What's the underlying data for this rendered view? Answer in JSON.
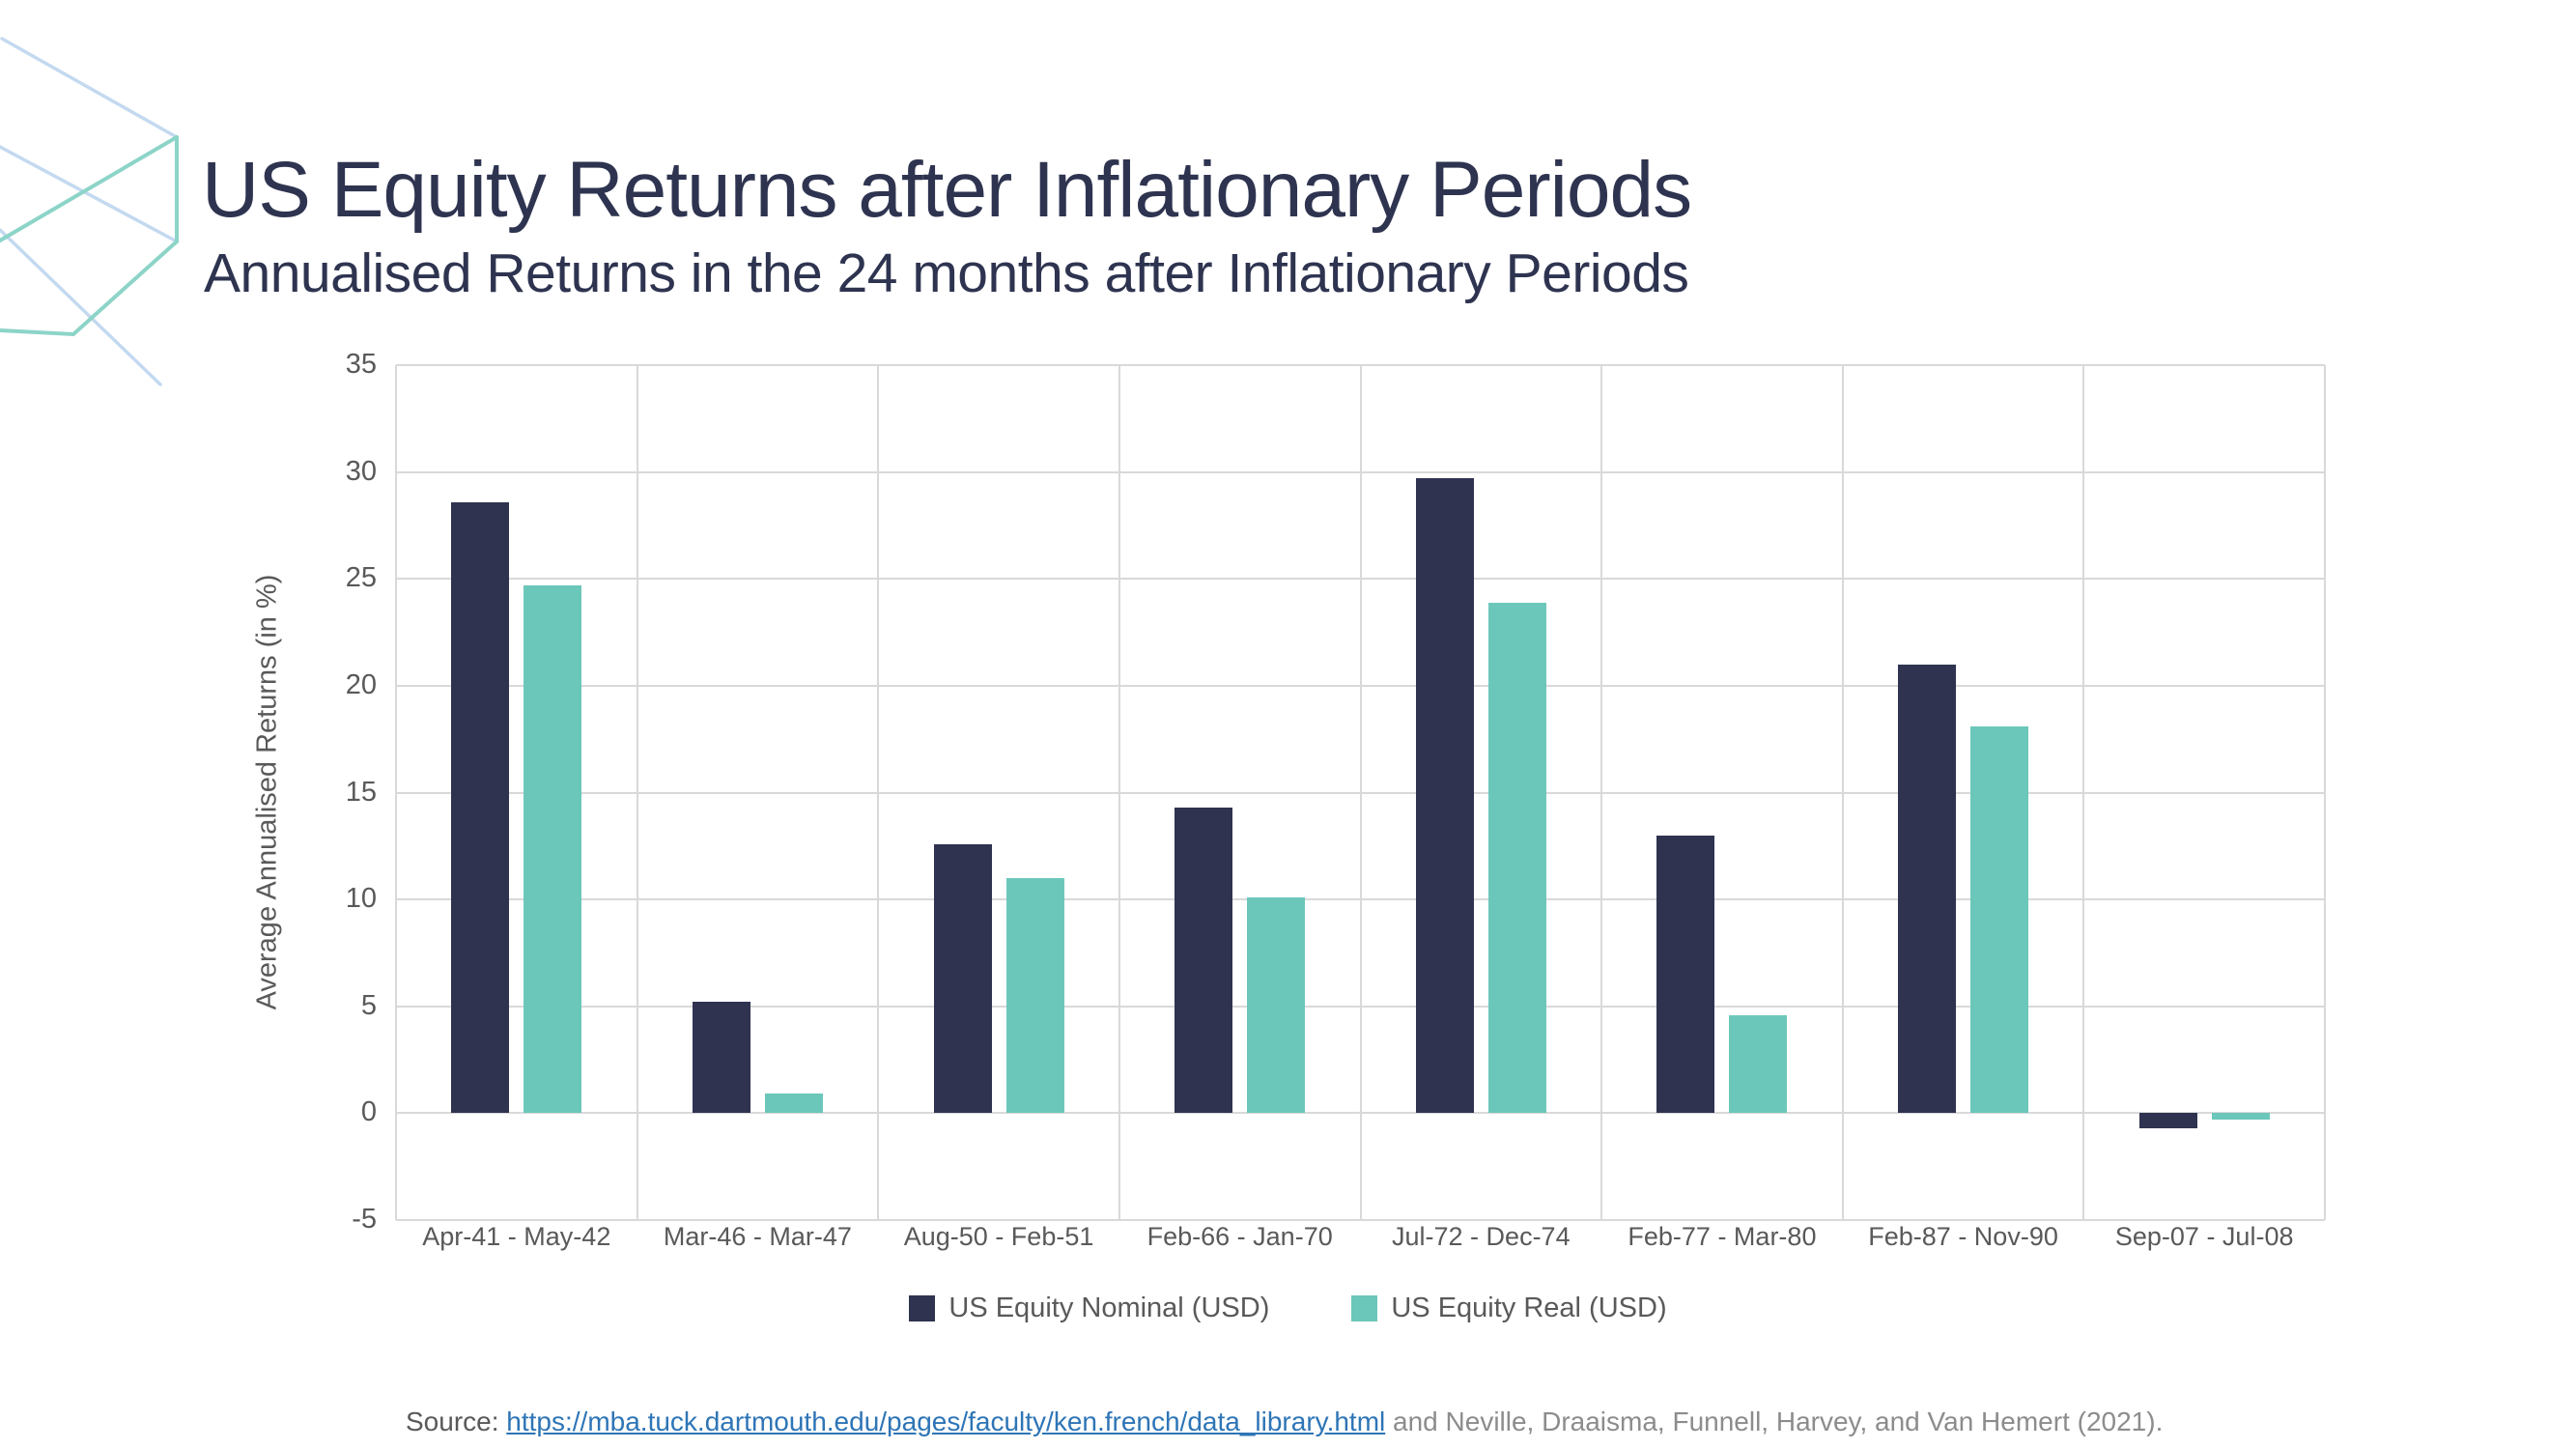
{
  "slide": {
    "title": "US Equity Returns after Inflationary Periods",
    "subtitle": "Annualised Returns in the 24 months after Inflationary Periods",
    "source_prefix": "Source: ",
    "source_link": "https://mba.tuck.dartmouth.edu/pages/faculty/ken.french/data_library.html",
    "source_suffix": " and Neville, Draaisma, Funnell, Harvey, and Van Hemert (2021)."
  },
  "colors": {
    "title_text": "#2E3450",
    "nominal": "#2F3350",
    "real": "#6CC7BB",
    "gridline": "#D9D9D9",
    "axis_text": "#595959",
    "link_blue": "#2E75B6",
    "source_gray": "#8C8C8C",
    "cube_blue": "#C3D9F0",
    "cube_teal": "#8CD4C8"
  },
  "chart_data": {
    "type": "bar",
    "title": "",
    "xlabel": "",
    "ylabel": "Average Annualised Returns (in %)",
    "ylim": [
      -5,
      35
    ],
    "ytick_step": 5,
    "grid": true,
    "legend_position": "bottom",
    "categories": [
      "Apr-41 - May-42",
      "Mar-46 - Mar-47",
      "Aug-50 - Feb-51",
      "Feb-66 - Jan-70",
      "Jul-72 - Dec-74",
      "Feb-77 - Mar-80",
      "Feb-87 - Nov-90",
      "Sep-07 - Jul-08"
    ],
    "series": [
      {
        "name": "US Equity Nominal (USD)",
        "color": "#2F3350",
        "values": [
          28.6,
          5.2,
          12.6,
          14.3,
          29.7,
          13.0,
          21.0,
          -0.7
        ]
      },
      {
        "name": "US Equity Real (USD)",
        "color": "#6CC7BB",
        "values": [
          24.7,
          0.9,
          11.0,
          10.1,
          23.9,
          4.6,
          18.1,
          -0.3
        ]
      }
    ]
  }
}
